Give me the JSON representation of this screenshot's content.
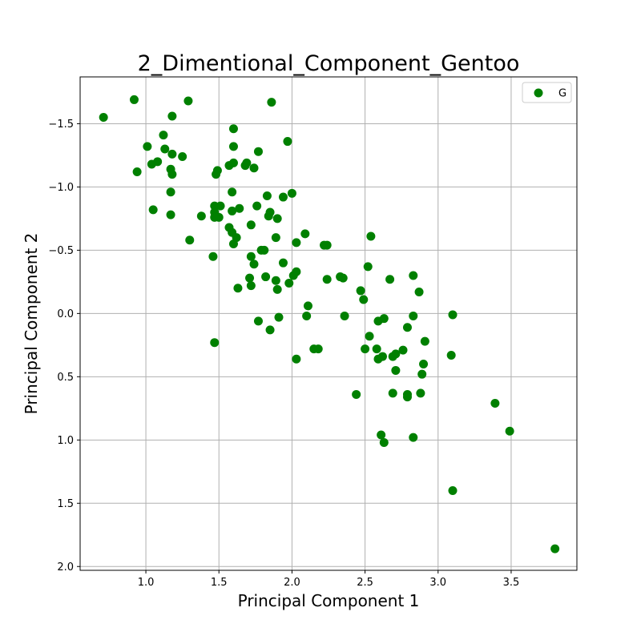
{
  "chart_data": {
    "type": "scatter",
    "title": "2_Dimentional_Component_Gentoo",
    "xlabel": "Principal Component 1",
    "ylabel": "Principal Component 2",
    "xlim": [
      0.55,
      3.95
    ],
    "ylim": [
      -1.87,
      2.03
    ],
    "y_inverted": true,
    "grid": true,
    "legend_position": "top-right",
    "x_ticks": [
      1.0,
      1.5,
      2.0,
      2.5,
      3.0,
      3.5
    ],
    "x_tick_labels": [
      "1.0",
      "1.5",
      "2.0",
      "2.5",
      "3.0",
      "3.5"
    ],
    "y_ticks": [
      -1.5,
      -1.0,
      -0.5,
      0.0,
      0.5,
      1.0,
      1.5,
      2.0
    ],
    "y_tick_labels": [
      "−1.5",
      "−1.0",
      "−0.5",
      "0.0",
      "0.5",
      "1.0",
      "1.5",
      "2.0"
    ],
    "series": [
      {
        "name": "G",
        "color": "#008000",
        "points": [
          [
            0.71,
            -1.55
          ],
          [
            0.92,
            -1.69
          ],
          [
            1.29,
            -1.68
          ],
          [
            1.86,
            -1.67
          ],
          [
            1.18,
            -1.56
          ],
          [
            1.6,
            -1.46
          ],
          [
            1.12,
            -1.41
          ],
          [
            1.97,
            -1.36
          ],
          [
            1.01,
            -1.32
          ],
          [
            1.6,
            -1.32
          ],
          [
            1.13,
            -1.3
          ],
          [
            1.77,
            -1.28
          ],
          [
            1.18,
            -1.26
          ],
          [
            1.25,
            -1.24
          ],
          [
            1.08,
            -1.2
          ],
          [
            1.04,
            -1.18
          ],
          [
            1.6,
            -1.19
          ],
          [
            1.69,
            -1.19
          ],
          [
            1.57,
            -1.17
          ],
          [
            1.68,
            -1.17
          ],
          [
            1.74,
            -1.15
          ],
          [
            0.94,
            -1.12
          ],
          [
            1.17,
            -1.14
          ],
          [
            1.49,
            -1.13
          ],
          [
            1.48,
            -1.1
          ],
          [
            1.18,
            -1.1
          ],
          [
            1.17,
            -0.96
          ],
          [
            1.59,
            -0.96
          ],
          [
            2.0,
            -0.95
          ],
          [
            1.83,
            -0.93
          ],
          [
            1.94,
            -0.92
          ],
          [
            1.47,
            -0.85
          ],
          [
            1.51,
            -0.85
          ],
          [
            1.76,
            -0.85
          ],
          [
            1.05,
            -0.82
          ],
          [
            1.64,
            -0.83
          ],
          [
            1.59,
            -0.81
          ],
          [
            1.47,
            -0.8
          ],
          [
            1.85,
            -0.8
          ],
          [
            1.17,
            -0.78
          ],
          [
            1.38,
            -0.77
          ],
          [
            1.47,
            -0.76
          ],
          [
            1.5,
            -0.76
          ],
          [
            1.84,
            -0.77
          ],
          [
            1.9,
            -0.75
          ],
          [
            1.72,
            -0.7
          ],
          [
            1.57,
            -0.68
          ],
          [
            1.59,
            -0.64
          ],
          [
            2.09,
            -0.63
          ],
          [
            1.62,
            -0.6
          ],
          [
            1.89,
            -0.6
          ],
          [
            2.54,
            -0.61
          ],
          [
            1.3,
            -0.58
          ],
          [
            2.03,
            -0.56
          ],
          [
            1.6,
            -0.55
          ],
          [
            2.22,
            -0.54
          ],
          [
            2.24,
            -0.54
          ],
          [
            1.79,
            -0.5
          ],
          [
            1.81,
            -0.5
          ],
          [
            1.46,
            -0.45
          ],
          [
            1.72,
            -0.45
          ],
          [
            1.74,
            -0.39
          ],
          [
            1.94,
            -0.4
          ],
          [
            2.52,
            -0.37
          ],
          [
            2.03,
            -0.33
          ],
          [
            2.01,
            -0.3
          ],
          [
            2.83,
            -0.3
          ],
          [
            1.71,
            -0.28
          ],
          [
            1.82,
            -0.29
          ],
          [
            2.33,
            -0.29
          ],
          [
            2.35,
            -0.28
          ],
          [
            1.89,
            -0.26
          ],
          [
            2.24,
            -0.27
          ],
          [
            2.67,
            -0.27
          ],
          [
            1.98,
            -0.24
          ],
          [
            1.72,
            -0.22
          ],
          [
            1.63,
            -0.2
          ],
          [
            1.9,
            -0.19
          ],
          [
            2.47,
            -0.18
          ],
          [
            2.87,
            -0.17
          ],
          [
            2.49,
            -0.11
          ],
          [
            2.11,
            -0.06
          ],
          [
            2.1,
            0.02
          ],
          [
            2.36,
            0.02
          ],
          [
            2.83,
            0.02
          ],
          [
            3.1,
            0.01
          ],
          [
            1.77,
            0.06
          ],
          [
            1.91,
            0.03
          ],
          [
            2.63,
            0.04
          ],
          [
            2.59,
            0.06
          ],
          [
            2.79,
            0.11
          ],
          [
            1.85,
            0.13
          ],
          [
            2.53,
            0.18
          ],
          [
            2.91,
            0.22
          ],
          [
            1.47,
            0.23
          ],
          [
            2.5,
            0.28
          ],
          [
            2.15,
            0.28
          ],
          [
            2.18,
            0.28
          ],
          [
            2.58,
            0.28
          ],
          [
            2.76,
            0.29
          ],
          [
            2.71,
            0.32
          ],
          [
            2.69,
            0.34
          ],
          [
            2.62,
            0.34
          ],
          [
            2.59,
            0.36
          ],
          [
            2.03,
            0.36
          ],
          [
            3.09,
            0.33
          ],
          [
            2.9,
            0.4
          ],
          [
            2.71,
            0.45
          ],
          [
            2.89,
            0.48
          ],
          [
            2.44,
            0.64
          ],
          [
            2.69,
            0.63
          ],
          [
            2.79,
            0.64
          ],
          [
            2.79,
            0.66
          ],
          [
            2.88,
            0.63
          ],
          [
            3.39,
            0.71
          ],
          [
            3.49,
            0.93
          ],
          [
            2.61,
            0.96
          ],
          [
            2.63,
            1.02
          ],
          [
            2.83,
            0.98
          ],
          [
            3.1,
            1.4
          ],
          [
            3.8,
            1.86
          ]
        ]
      }
    ]
  }
}
